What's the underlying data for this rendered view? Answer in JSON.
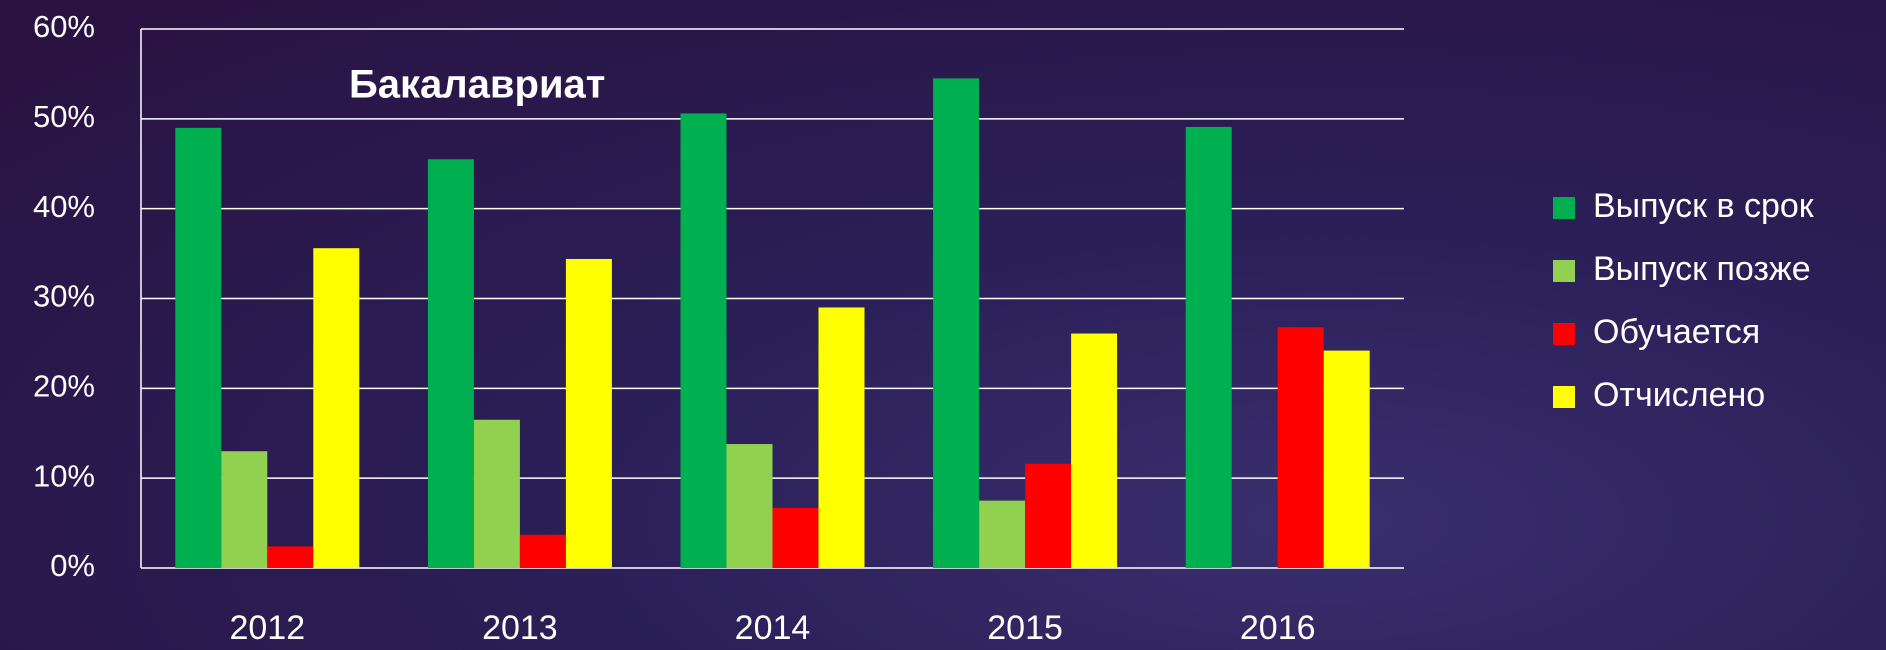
{
  "chart_data": {
    "type": "bar",
    "title": "Бакалавриат",
    "categories": [
      "2012",
      "2013",
      "2014",
      "2015",
      "2016"
    ],
    "series": [
      {
        "name": "Выпуск в срок",
        "color": "#00b050",
        "values": [
          49.0,
          45.5,
          50.6,
          54.5,
          49.1
        ]
      },
      {
        "name": "Выпуск позже",
        "color": "#92d050",
        "values": [
          13.0,
          16.5,
          13.8,
          7.5,
          0
        ]
      },
      {
        "name": "Обучается",
        "color": "#ff0000",
        "values": [
          2.4,
          3.7,
          6.7,
          11.6,
          26.8
        ]
      },
      {
        "name": "Отчислено",
        "color": "#ffff00",
        "values": [
          35.6,
          34.4,
          29.0,
          26.1,
          24.2
        ]
      }
    ],
    "ylim": [
      0,
      60
    ],
    "yticks": [
      {
        "value": 0,
        "label": "0%"
      },
      {
        "value": 10,
        "label": "10%"
      },
      {
        "value": 20,
        "label": "20%"
      },
      {
        "value": 30,
        "label": "30%"
      },
      {
        "value": 40,
        "label": "40%"
      },
      {
        "value": 50,
        "label": "50%"
      },
      {
        "value": 60,
        "label": "60%"
      }
    ],
    "grid": true,
    "legend": "right"
  }
}
